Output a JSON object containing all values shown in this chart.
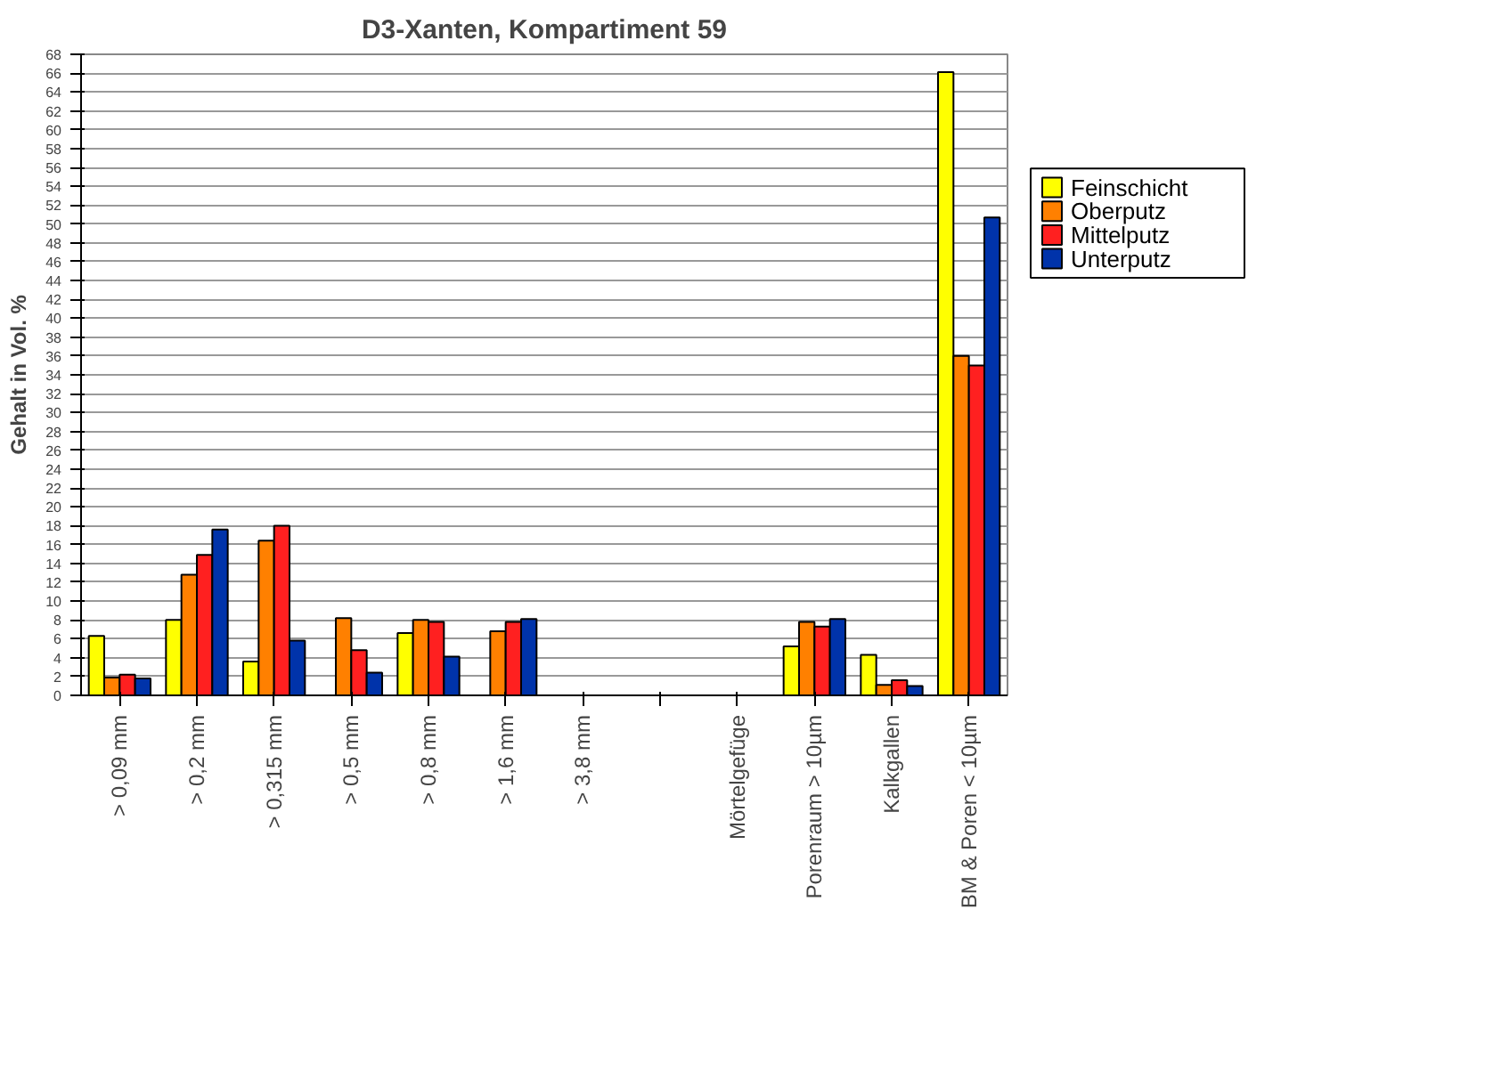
{
  "chart_data": {
    "type": "bar",
    "title": "D3-Xanten, Kompartiment 59",
    "ylabel": "Gehalt in Vol. %",
    "categories": [
      "> 0,09 mm",
      "> 0,2 mm",
      "> 0,315 mm",
      "> 0,5 mm",
      "> 0,8 mm",
      "> 1,6 mm",
      "> 3,8 mm",
      null,
      "Mörtelgefüge",
      "Porenraum > 10µm",
      "Kalkgallen",
      "BM & Poren < 10µm"
    ],
    "series": [
      {
        "name": "Feinschicht",
        "color": "#ffff00",
        "values": [
          6.3,
          8.0,
          3.6,
          null,
          6.6,
          null,
          null,
          null,
          null,
          5.2,
          4.3,
          66.1
        ]
      },
      {
        "name": "Oberputz",
        "color": "#ff8000",
        "values": [
          1.9,
          12.8,
          16.4,
          8.2,
          8.0,
          6.8,
          null,
          null,
          null,
          7.8,
          1.1,
          36.0
        ]
      },
      {
        "name": "Mittelputz",
        "color": "#ff2020",
        "values": [
          2.2,
          14.9,
          18.0,
          4.8,
          7.8,
          7.8,
          null,
          null,
          null,
          7.3,
          1.6,
          35.0
        ]
      },
      {
        "name": "Unterputz",
        "color": "#0033aa",
        "values": [
          1.8,
          17.6,
          5.8,
          2.4,
          4.1,
          8.1,
          null,
          null,
          null,
          8.1,
          1.0,
          50.7
        ]
      }
    ],
    "ylim": [
      0,
      68
    ],
    "yticks": [
      0,
      2,
      4,
      6,
      8,
      10,
      12,
      14,
      16,
      18,
      20,
      22,
      24,
      26,
      28,
      30,
      32,
      34,
      36,
      38,
      40,
      42,
      44,
      46,
      48,
      50,
      52,
      54,
      56,
      58,
      60,
      62,
      64,
      66,
      68
    ],
    "grid": "y",
    "legend": "right"
  }
}
